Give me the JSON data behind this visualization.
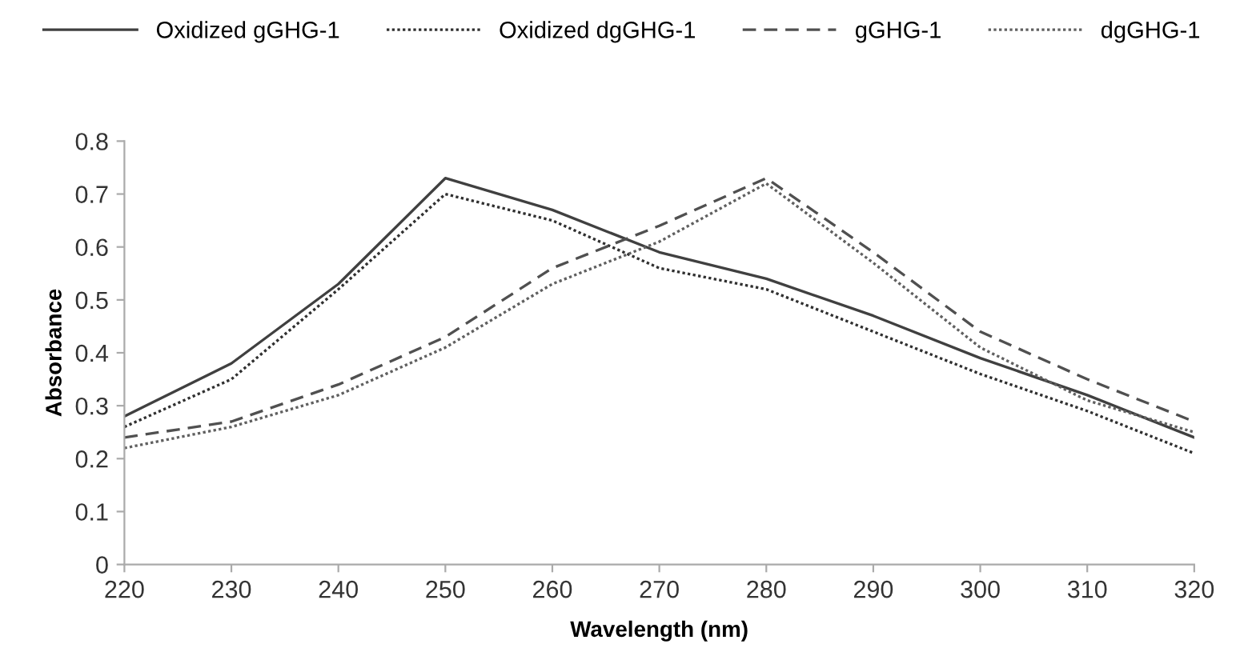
{
  "chart_data": {
    "type": "line",
    "xlabel": "Wavelength (nm)",
    "ylabel": "Absorbance",
    "x": [
      220,
      230,
      240,
      250,
      260,
      270,
      280,
      290,
      300,
      310,
      320
    ],
    "series": [
      {
        "name": "Oxidized gGHG-1",
        "color": "#404040",
        "line_style": "solid",
        "values": [
          0.28,
          0.38,
          0.53,
          0.73,
          0.67,
          0.59,
          0.54,
          0.47,
          0.39,
          0.32,
          0.24
        ]
      },
      {
        "name": "Oxidized dgGHG-1",
        "color": "#303030",
        "line_style": "dotted",
        "values": [
          0.26,
          0.35,
          0.52,
          0.7,
          0.65,
          0.56,
          0.52,
          0.44,
          0.36,
          0.29,
          0.21
        ]
      },
      {
        "name": "gGHG-1",
        "color": "#505050",
        "line_style": "dashed",
        "values": [
          0.24,
          0.27,
          0.34,
          0.43,
          0.56,
          0.64,
          0.73,
          0.59,
          0.44,
          0.35,
          0.27
        ]
      },
      {
        "name": "dgGHG-1",
        "color": "#606060",
        "line_style": "dotted",
        "values": [
          0.22,
          0.26,
          0.32,
          0.41,
          0.53,
          0.61,
          0.72,
          0.57,
          0.41,
          0.31,
          0.25
        ]
      }
    ],
    "xlim": [
      220,
      320
    ],
    "xticks": [
      220,
      230,
      240,
      250,
      260,
      270,
      280,
      290,
      300,
      310,
      320
    ],
    "ylim": [
      0,
      0.8
    ],
    "yticks": [
      0,
      0.1,
      0.2,
      0.3,
      0.4,
      0.5,
      0.6,
      0.7,
      0.8
    ],
    "grid": false,
    "legend": "top",
    "marker": "none"
  }
}
